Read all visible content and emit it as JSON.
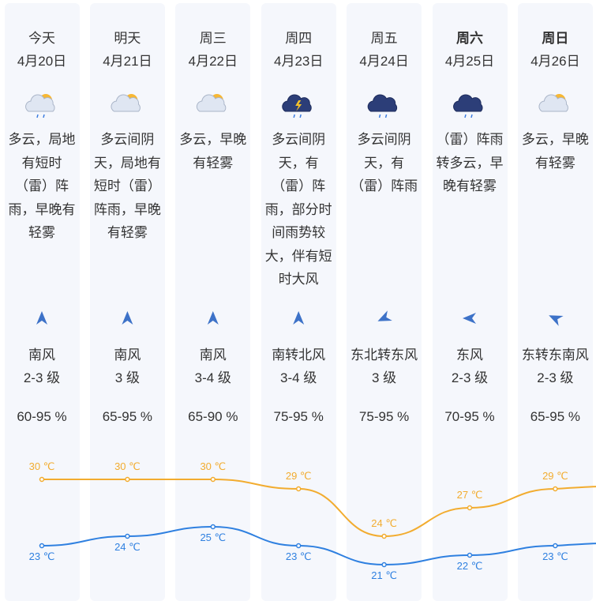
{
  "days": [
    {
      "day": "今天",
      "date": "4月20日",
      "desc": [
        "多云，局地",
        "有短时",
        "（雷）阵",
        "雨，早晚有",
        "轻雾"
      ],
      "wind": "南风",
      "level": "2-3 级",
      "humidity": "60-95 %"
    },
    {
      "day": "明天",
      "date": "4月21日",
      "desc": [
        "多云间阴",
        "天，局地有",
        "短时（雷）",
        "阵雨，早晚",
        "有轻雾"
      ],
      "wind": "南风",
      "level": "3 级",
      "humidity": "65-95 %"
    },
    {
      "day": "周三",
      "date": "4月22日",
      "desc": [
        "多云，早晚",
        "有轻雾"
      ],
      "wind": "南风",
      "level": "3-4 级",
      "humidity": "65-90 %"
    },
    {
      "day": "周四",
      "date": "4月23日",
      "desc": [
        "多云间阴",
        "天，有",
        "（雷）阵",
        "雨，部分时",
        "间雨势较",
        "大，伴有短",
        "时大风"
      ],
      "wind": "南转北风",
      "level": "3-4 级",
      "humidity": "75-95 %"
    },
    {
      "day": "周五",
      "date": "4月24日",
      "desc": [
        "多云间阴",
        "天，有",
        "（雷）阵雨"
      ],
      "wind": "东北转东风",
      "level": "3 级",
      "humidity": "75-95 %"
    },
    {
      "day": "周六",
      "date": "4月25日",
      "desc": [
        "（雷）阵雨",
        "转多云，早",
        "晚有轻雾"
      ],
      "wind": "东风",
      "level": "2-3 级",
      "humidity": "70-95 %"
    },
    {
      "day": "周日",
      "date": "4月26日",
      "desc": [
        "多云，早晚",
        "有轻雾"
      ],
      "wind": "东转东南风",
      "level": "2-3 级",
      "humidity": "65-95 %"
    }
  ],
  "chart_data": {
    "type": "line",
    "series": [
      {
        "color": "#f2ac2f",
        "values": [
          30,
          30,
          30,
          29,
          24,
          27,
          29
        ],
        "value_labels": [
          "30 ℃",
          "30 ℃",
          "30 ℃",
          "29 ℃",
          "24 ℃",
          "27 ℃",
          "29 ℃"
        ]
      },
      {
        "color": "#2f80e0",
        "values": [
          23,
          24,
          25,
          23,
          21,
          22,
          23
        ],
        "value_labels": [
          "23 ℃",
          "24 ℃",
          "25 ℃",
          "23 ℃",
          "21 ℃",
          "22 ℃",
          "23 ℃"
        ]
      }
    ]
  }
}
